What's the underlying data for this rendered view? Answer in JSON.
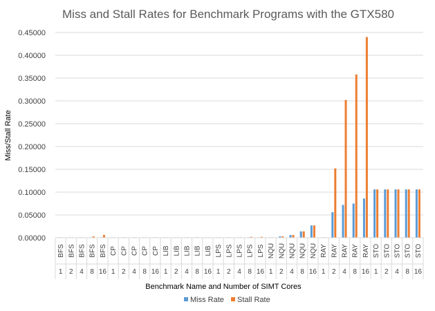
{
  "chart_data": {
    "type": "bar",
    "title": "Miss and Stall Rates for Benchmark Programs with the GTX580",
    "xlabel": "Benchmark Name and Number of SIMT Cores",
    "ylabel": "Miss/Stall Rate",
    "ylim": [
      0,
      0.45
    ],
    "ytick_labels": [
      "0.00000",
      "0.05000",
      "0.10000",
      "0.15000",
      "0.20000",
      "0.25000",
      "0.30000",
      "0.35000",
      "0.40000",
      "0.45000"
    ],
    "grid": true,
    "legend_position": "bottom",
    "categories": [
      {
        "name": "BFS",
        "cores": "1"
      },
      {
        "name": "BFS",
        "cores": "2"
      },
      {
        "name": "BFS",
        "cores": "4"
      },
      {
        "name": "BFS",
        "cores": "8"
      },
      {
        "name": "BFS",
        "cores": "16"
      },
      {
        "name": "CP",
        "cores": "1"
      },
      {
        "name": "CP",
        "cores": "2"
      },
      {
        "name": "CP",
        "cores": "4"
      },
      {
        "name": "CP",
        "cores": "8"
      },
      {
        "name": "CP",
        "cores": "16"
      },
      {
        "name": "LIB",
        "cores": "1"
      },
      {
        "name": "LIB",
        "cores": "2"
      },
      {
        "name": "LIB",
        "cores": "4"
      },
      {
        "name": "LIB",
        "cores": "8"
      },
      {
        "name": "LIB",
        "cores": "16"
      },
      {
        "name": "LPS",
        "cores": "1"
      },
      {
        "name": "LPS",
        "cores": "2"
      },
      {
        "name": "LPS",
        "cores": "4"
      },
      {
        "name": "LPS",
        "cores": "8"
      },
      {
        "name": "LPS",
        "cores": "16"
      },
      {
        "name": "NQU",
        "cores": "1"
      },
      {
        "name": "NQU",
        "cores": "2"
      },
      {
        "name": "NQU",
        "cores": "4"
      },
      {
        "name": "NQU",
        "cores": "8"
      },
      {
        "name": "NQU",
        "cores": "16"
      },
      {
        "name": "RAY",
        "cores": "1"
      },
      {
        "name": "RAY",
        "cores": "2"
      },
      {
        "name": "RAY",
        "cores": "4"
      },
      {
        "name": "RAY",
        "cores": "8"
      },
      {
        "name": "RAY",
        "cores": "16"
      },
      {
        "name": "STO",
        "cores": "1"
      },
      {
        "name": "STO",
        "cores": "2"
      },
      {
        "name": "STO",
        "cores": "4"
      },
      {
        "name": "STO",
        "cores": "8"
      },
      {
        "name": "STO",
        "cores": "16"
      }
    ],
    "series": [
      {
        "name": "Miss Rate",
        "color": "#5b9bd5",
        "values": [
          0.001,
          0.001,
          0.001,
          0.001,
          0.001,
          0.001,
          0.001,
          0.001,
          0.001,
          0.001,
          0.001,
          0.001,
          0.001,
          0.001,
          0.001,
          0.001,
          0.001,
          0.001,
          0.001,
          0.001,
          0.001,
          0.003,
          0.006,
          0.014,
          0.027,
          0.001,
          0.056,
          0.072,
          0.075,
          0.086,
          0.106,
          0.106,
          0.106,
          0.106,
          0.106
        ]
      },
      {
        "name": "Stall Rate",
        "color": "#ed7d31",
        "values": [
          0.001,
          0.001,
          0.001,
          0.003,
          0.006,
          0.001,
          0.001,
          0.001,
          0.001,
          0.001,
          0.001,
          0.001,
          0.001,
          0.001,
          0.001,
          0.001,
          0.001,
          0.001,
          0.002,
          0.002,
          0.001,
          0.003,
          0.006,
          0.014,
          0.027,
          0.001,
          0.152,
          0.302,
          0.358,
          0.44,
          0.106,
          0.106,
          0.106,
          0.106,
          0.106
        ]
      }
    ]
  }
}
